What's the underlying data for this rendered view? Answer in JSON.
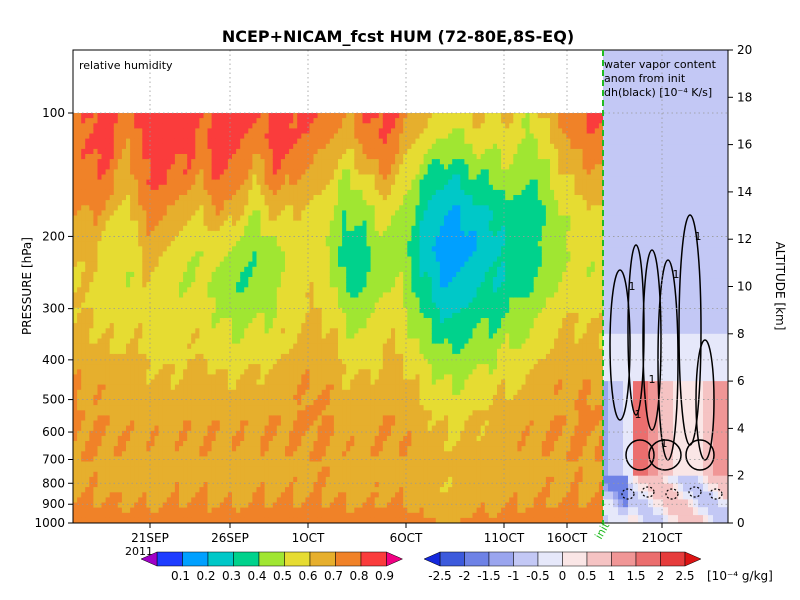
{
  "chart_data": {
    "type": "heatmap",
    "title": "NCEP+NICAM_fcst HUM (72-80E,8S-EQ)",
    "left_panel": {
      "annotation": "relative humidity",
      "ylabel": "PRESSURE [hPa]",
      "pressure_ticks": [
        "100",
        "200",
        "300",
        "400",
        "500",
        "600",
        "700",
        "800",
        "900",
        "1000"
      ],
      "pressure_values": [
        100,
        200,
        300,
        400,
        500,
        600,
        700,
        800,
        900,
        1000
      ],
      "x_ticks": [
        "21SEP",
        "26SEP",
        "1OCT",
        "6OCT",
        "11OCT",
        "16OCT",
        "21OCT"
      ],
      "year_label": "2011",
      "init_label": "init",
      "colorbar": {
        "levels": [
          "0.1",
          "0.2",
          "0.3",
          "0.4",
          "0.5",
          "0.6",
          "0.7",
          "0.8",
          "0.9"
        ],
        "colors": [
          "#a000c8",
          "#1e3cff",
          "#00a0ff",
          "#00c8c8",
          "#00d28c",
          "#a0e632",
          "#e6dc32",
          "#e6af2d",
          "#f08228",
          "#fa3c3c",
          "#f00082"
        ]
      },
      "time_series": [
        {
          "t": 0,
          "rh": [
            0.82,
            0.85,
            0.83,
            0.78,
            0.74,
            0.7,
            0.72,
            0.76,
            0.8,
            0.82,
            0.8,
            0.78,
            0.86
          ]
        },
        {
          "t": 2,
          "rh": [
            0.92,
            0.92,
            0.88,
            0.8,
            0.72,
            0.68,
            0.7,
            0.74,
            0.78,
            0.8,
            0.8,
            0.78,
            0.86
          ]
        },
        {
          "t": 4,
          "rh": [
            0.95,
            0.93,
            0.86,
            0.74,
            0.66,
            0.64,
            0.66,
            0.7,
            0.76,
            0.8,
            0.79,
            0.77,
            0.85
          ]
        },
        {
          "t": 6,
          "rh": [
            0.86,
            0.78,
            0.72,
            0.66,
            0.6,
            0.62,
            0.66,
            0.7,
            0.74,
            0.78,
            0.78,
            0.76,
            0.84
          ]
        },
        {
          "t": 8,
          "rh": [
            0.93,
            0.93,
            0.9,
            0.84,
            0.74,
            0.68,
            0.66,
            0.7,
            0.74,
            0.78,
            0.78,
            0.76,
            0.84
          ]
        },
        {
          "t": 10,
          "rh": [
            0.95,
            0.95,
            0.92,
            0.8,
            0.7,
            0.64,
            0.62,
            0.66,
            0.72,
            0.76,
            0.78,
            0.76,
            0.84
          ]
        },
        {
          "t": 12,
          "rh": [
            0.94,
            0.93,
            0.86,
            0.72,
            0.62,
            0.6,
            0.64,
            0.68,
            0.74,
            0.78,
            0.78,
            0.77,
            0.85
          ]
        },
        {
          "t": 14,
          "rh": [
            0.9,
            0.88,
            0.8,
            0.68,
            0.6,
            0.62,
            0.66,
            0.7,
            0.76,
            0.8,
            0.79,
            0.77,
            0.85
          ]
        },
        {
          "t": 16,
          "rh": [
            0.95,
            0.95,
            0.9,
            0.78,
            0.66,
            0.58,
            0.6,
            0.66,
            0.72,
            0.78,
            0.78,
            0.76,
            0.84
          ]
        },
        {
          "t": 18,
          "rh": [
            0.94,
            0.92,
            0.84,
            0.7,
            0.56,
            0.5,
            0.56,
            0.64,
            0.72,
            0.78,
            0.78,
            0.76,
            0.84
          ]
        },
        {
          "t": 20,
          "rh": [
            0.9,
            0.8,
            0.7,
            0.58,
            0.5,
            0.52,
            0.58,
            0.66,
            0.74,
            0.78,
            0.78,
            0.77,
            0.85
          ]
        },
        {
          "t": 22,
          "rh": [
            0.95,
            0.94,
            0.86,
            0.7,
            0.58,
            0.56,
            0.62,
            0.68,
            0.74,
            0.8,
            0.79,
            0.77,
            0.85
          ]
        },
        {
          "t": 24,
          "rh": [
            0.94,
            0.9,
            0.8,
            0.68,
            0.62,
            0.64,
            0.68,
            0.72,
            0.76,
            0.8,
            0.79,
            0.77,
            0.85
          ]
        },
        {
          "t": 26,
          "rh": [
            0.92,
            0.84,
            0.74,
            0.66,
            0.64,
            0.68,
            0.72,
            0.76,
            0.8,
            0.82,
            0.8,
            0.78,
            0.86
          ]
        },
        {
          "t": 28,
          "rh": [
            0.88,
            0.8,
            0.7,
            0.62,
            0.6,
            0.64,
            0.7,
            0.74,
            0.78,
            0.8,
            0.8,
            0.78,
            0.86
          ]
        },
        {
          "t": 30,
          "rh": [
            0.8,
            0.7,
            0.58,
            0.5,
            0.42,
            0.48,
            0.58,
            0.66,
            0.72,
            0.76,
            0.78,
            0.76,
            0.84
          ]
        },
        {
          "t": 32,
          "rh": [
            0.9,
            0.82,
            0.66,
            0.54,
            0.46,
            0.48,
            0.56,
            0.64,
            0.72,
            0.76,
            0.78,
            0.76,
            0.84
          ]
        },
        {
          "t": 34,
          "rh": [
            0.94,
            0.9,
            0.78,
            0.64,
            0.58,
            0.6,
            0.66,
            0.7,
            0.76,
            0.8,
            0.79,
            0.77,
            0.85
          ]
        },
        {
          "t": 36,
          "rh": [
            0.86,
            0.78,
            0.66,
            0.58,
            0.54,
            0.58,
            0.64,
            0.7,
            0.76,
            0.8,
            0.79,
            0.77,
            0.85
          ]
        },
        {
          "t": 38,
          "rh": [
            0.76,
            0.64,
            0.52,
            0.44,
            0.4,
            0.44,
            0.52,
            0.6,
            0.68,
            0.74,
            0.76,
            0.74,
            0.82
          ]
        },
        {
          "t": 40,
          "rh": [
            0.7,
            0.56,
            0.42,
            0.3,
            0.26,
            0.32,
            0.42,
            0.52,
            0.62,
            0.7,
            0.74,
            0.72,
            0.8
          ]
        },
        {
          "t": 42,
          "rh": [
            0.66,
            0.54,
            0.4,
            0.28,
            0.22,
            0.3,
            0.4,
            0.5,
            0.6,
            0.68,
            0.72,
            0.72,
            0.8
          ]
        },
        {
          "t": 44,
          "rh": [
            0.72,
            0.62,
            0.48,
            0.34,
            0.3,
            0.36,
            0.46,
            0.56,
            0.64,
            0.72,
            0.74,
            0.74,
            0.82
          ]
        },
        {
          "t": 46,
          "rh": [
            0.68,
            0.6,
            0.5,
            0.4,
            0.36,
            0.4,
            0.48,
            0.58,
            0.66,
            0.72,
            0.76,
            0.74,
            0.82
          ]
        },
        {
          "t": 48,
          "rh": [
            0.72,
            0.64,
            0.56,
            0.46,
            0.44,
            0.46,
            0.54,
            0.62,
            0.7,
            0.76,
            0.78,
            0.76,
            0.84
          ]
        },
        {
          "t": 50,
          "rh": [
            0.6,
            0.54,
            0.48,
            0.44,
            0.44,
            0.48,
            0.56,
            0.64,
            0.72,
            0.78,
            0.78,
            0.76,
            0.84
          ]
        },
        {
          "t": 52,
          "rh": [
            0.74,
            0.66,
            0.58,
            0.52,
            0.54,
            0.58,
            0.64,
            0.7,
            0.76,
            0.8,
            0.79,
            0.77,
            0.85
          ]
        },
        {
          "t": 54,
          "rh": [
            0.86,
            0.78,
            0.7,
            0.62,
            0.6,
            0.64,
            0.7,
            0.74,
            0.78,
            0.8,
            0.8,
            0.78,
            0.86
          ]
        },
        {
          "t": 56,
          "rh": [
            0.92,
            0.84,
            0.74,
            0.66,
            0.62,
            0.64,
            0.7,
            0.74,
            0.78,
            0.82,
            0.8,
            0.78,
            0.86
          ]
        },
        {
          "t": 58,
          "rh": [
            0.94,
            0.88,
            0.78,
            0.68,
            0.62,
            0.62,
            0.68,
            0.72,
            0.78,
            0.82,
            0.8,
            0.78,
            0.86
          ]
        }
      ]
    },
    "right_panel": {
      "annotation_lines": [
        "water vapor content",
        "anom from init",
        "dh(black) [10⁻⁴ K/s]"
      ],
      "ylabel": "ALTITUDE [km]",
      "altitude_ticks": [
        "0",
        "2",
        "4",
        "6",
        "8",
        "10",
        "12",
        "14",
        "16",
        "18",
        "20"
      ],
      "altitude_values": [
        0,
        2,
        4,
        6,
        8,
        10,
        12,
        14,
        16,
        18,
        20
      ],
      "colorbar": {
        "levels": [
          "-2.5",
          "-2",
          "-1.5",
          "-1",
          "-0.5",
          "0",
          "0.5",
          "1",
          "1.5",
          "2",
          "2.5"
        ],
        "unit": "[10⁻⁴ g/kg]",
        "colors": [
          "#1428dc",
          "#3c5adc",
          "#6e82e6",
          "#9aa5ee",
          "#c3c8f5",
          "#e6e8fa",
          "#fae6e6",
          "#f5c3c3",
          "#f09696",
          "#eb6e6e",
          "#e63c3c",
          "#dc1414"
        ]
      },
      "contour_label": "1"
    }
  }
}
